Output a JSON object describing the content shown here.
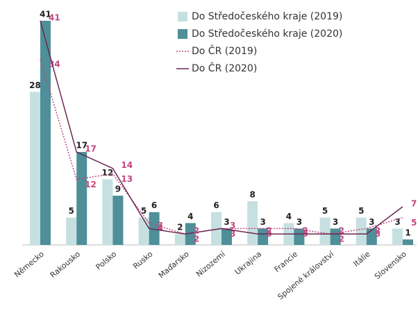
{
  "chart_data": {
    "type": "bar_line",
    "categories": [
      "Německo",
      "Rakousko",
      "Polsko",
      "Rusko",
      "Maďarsko",
      "Nizozemí",
      "Ukrajina",
      "Francie",
      "Spojené království",
      "Itálie",
      "Slovensko"
    ],
    "series": [
      {
        "name": "Do Středočeského kraje (2019)",
        "type": "bar",
        "color": "#c6e0e1",
        "values": [
          28,
          5,
          12,
          5,
          2,
          6,
          8,
          4,
          5,
          5,
          3
        ]
      },
      {
        "name": "Do Středočeského kraje (2020)",
        "type": "bar",
        "color": "#4e8f99",
        "values": [
          41,
          17,
          9,
          6,
          4,
          3,
          3,
          3,
          3,
          3,
          1
        ]
      },
      {
        "name": "Do ČR (2019)",
        "type": "line",
        "style": "dotted",
        "color": "#c2477f",
        "values": [
          34,
          12,
          13,
          4,
          2,
          3,
          3,
          3,
          2,
          3,
          5
        ]
      },
      {
        "name": "Do ČR (2020)",
        "type": "line",
        "style": "solid",
        "color": "#6b2750",
        "values": [
          41,
          17,
          14,
          3,
          2,
          3,
          2,
          2,
          2,
          2,
          7
        ]
      }
    ]
  }
}
